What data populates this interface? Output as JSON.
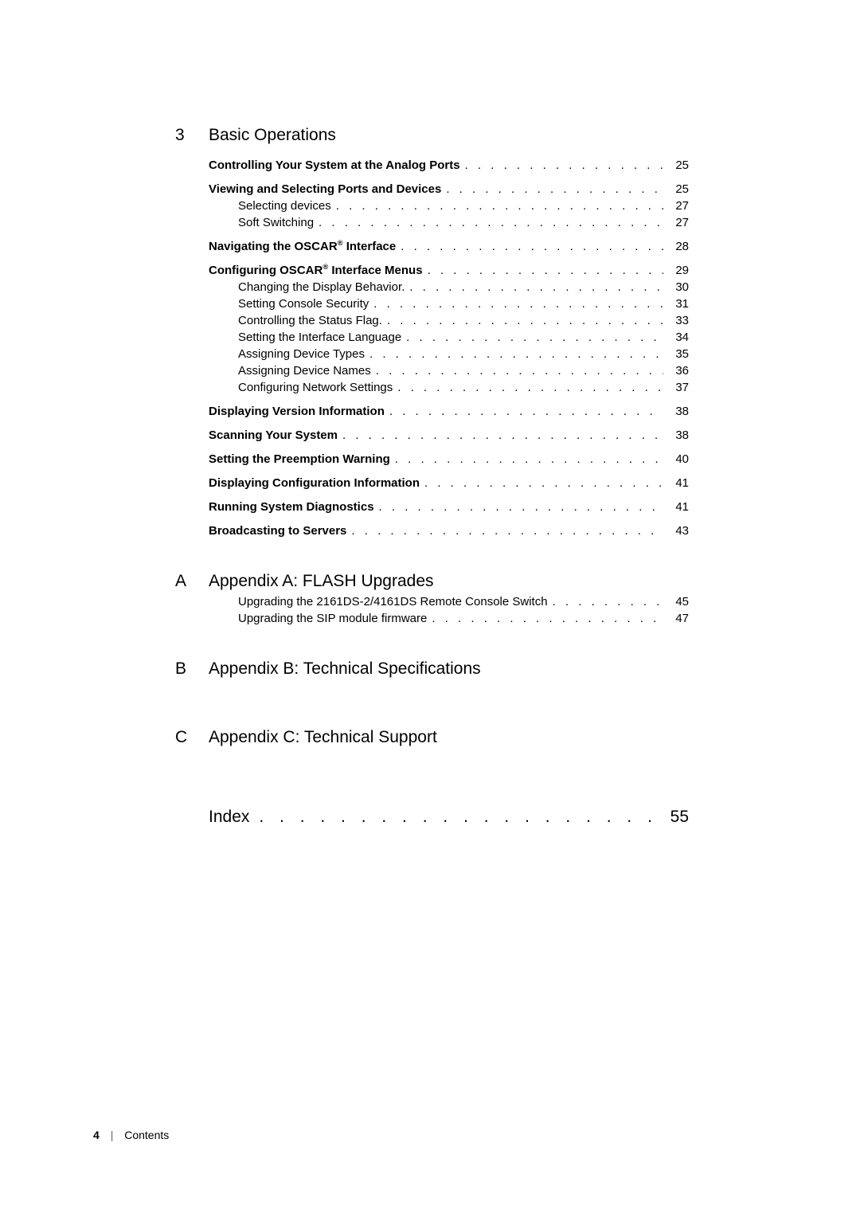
{
  "chapter3": {
    "num": "3",
    "title": "Basic Operations",
    "groups": [
      [
        {
          "label": "Controlling Your System at the Analog Ports",
          "page": "25",
          "level": 1,
          "bold": true
        }
      ],
      [
        {
          "label": "Viewing and Selecting Ports and Devices",
          "page": "25",
          "level": 1,
          "bold": true
        },
        {
          "label": "Selecting devices",
          "page": "27",
          "level": 2,
          "bold": false
        },
        {
          "label": "Soft Switching",
          "page": "27",
          "level": 2,
          "bold": false
        }
      ],
      [
        {
          "label": "Navigating the OSCAR",
          "reg": true,
          "suffix": " Interface",
          "page": "28",
          "level": 1,
          "bold": true
        }
      ],
      [
        {
          "label": "Configuring OSCAR",
          "reg": true,
          "suffix": " Interface Menus",
          "page": "29",
          "level": 1,
          "bold": true
        },
        {
          "label": "Changing the Display Behavior.",
          "page": "30",
          "level": 2,
          "bold": false
        },
        {
          "label": "Setting Console Security",
          "page": "31",
          "level": 2,
          "bold": false
        },
        {
          "label": "Controlling the Status Flag.",
          "page": "33",
          "level": 2,
          "bold": false
        },
        {
          "label": "Setting the Interface Language",
          "page": "34",
          "level": 2,
          "bold": false
        },
        {
          "label": "Assigning Device Types",
          "page": "35",
          "level": 2,
          "bold": false
        },
        {
          "label": "Assigning Device Names",
          "page": "36",
          "level": 2,
          "bold": false
        },
        {
          "label": "Configuring Network Settings",
          "page": "37",
          "level": 2,
          "bold": false
        }
      ],
      [
        {
          "label": "Displaying Version Information",
          "page": "38",
          "level": 1,
          "bold": true
        }
      ],
      [
        {
          "label": "Scanning Your System",
          "page": "38",
          "level": 1,
          "bold": true
        }
      ],
      [
        {
          "label": "Setting the Preemption Warning",
          "page": "40",
          "level": 1,
          "bold": true
        }
      ],
      [
        {
          "label": "Displaying Configuration Information",
          "page": "41",
          "level": 1,
          "bold": true
        }
      ],
      [
        {
          "label": "Running System Diagnostics",
          "page": "41",
          "level": 1,
          "bold": true
        }
      ],
      [
        {
          "label": "Broadcasting to Servers",
          "page": "43",
          "level": 1,
          "bold": true
        }
      ]
    ]
  },
  "appendixA": {
    "num": "A",
    "title": "Appendix A: FLASH Upgrades",
    "lines": [
      {
        "label": "Upgrading the 2161DS-2/4161DS Remote Console Switch",
        "page": "45",
        "level": 2,
        "bold": false
      },
      {
        "label": "Upgrading the SIP module firmware",
        "page": "47",
        "level": 2,
        "bold": false
      }
    ]
  },
  "appendixB": {
    "num": "B",
    "title": "Appendix B: Technical Specifications"
  },
  "appendixC": {
    "num": "C",
    "title": "Appendix C: Technical Support"
  },
  "index": {
    "label": "Index",
    "page": "55"
  },
  "footer": {
    "page": "4",
    "section": "Contents"
  },
  "dots_toc": " .  .  .  .  .  .  .  .  .  .  .  .  .  .  .  .  .  .  .  .  .  .  .  .  .  .  .  .  .  .  .  .  .  .  .  .  .  .  .  .  .  .  .  .",
  "dots_index": ". . . . . . . . . . . . . . . . . . . . . . . . . . . . . . . . . . . . . . . . . . . . . . . ."
}
